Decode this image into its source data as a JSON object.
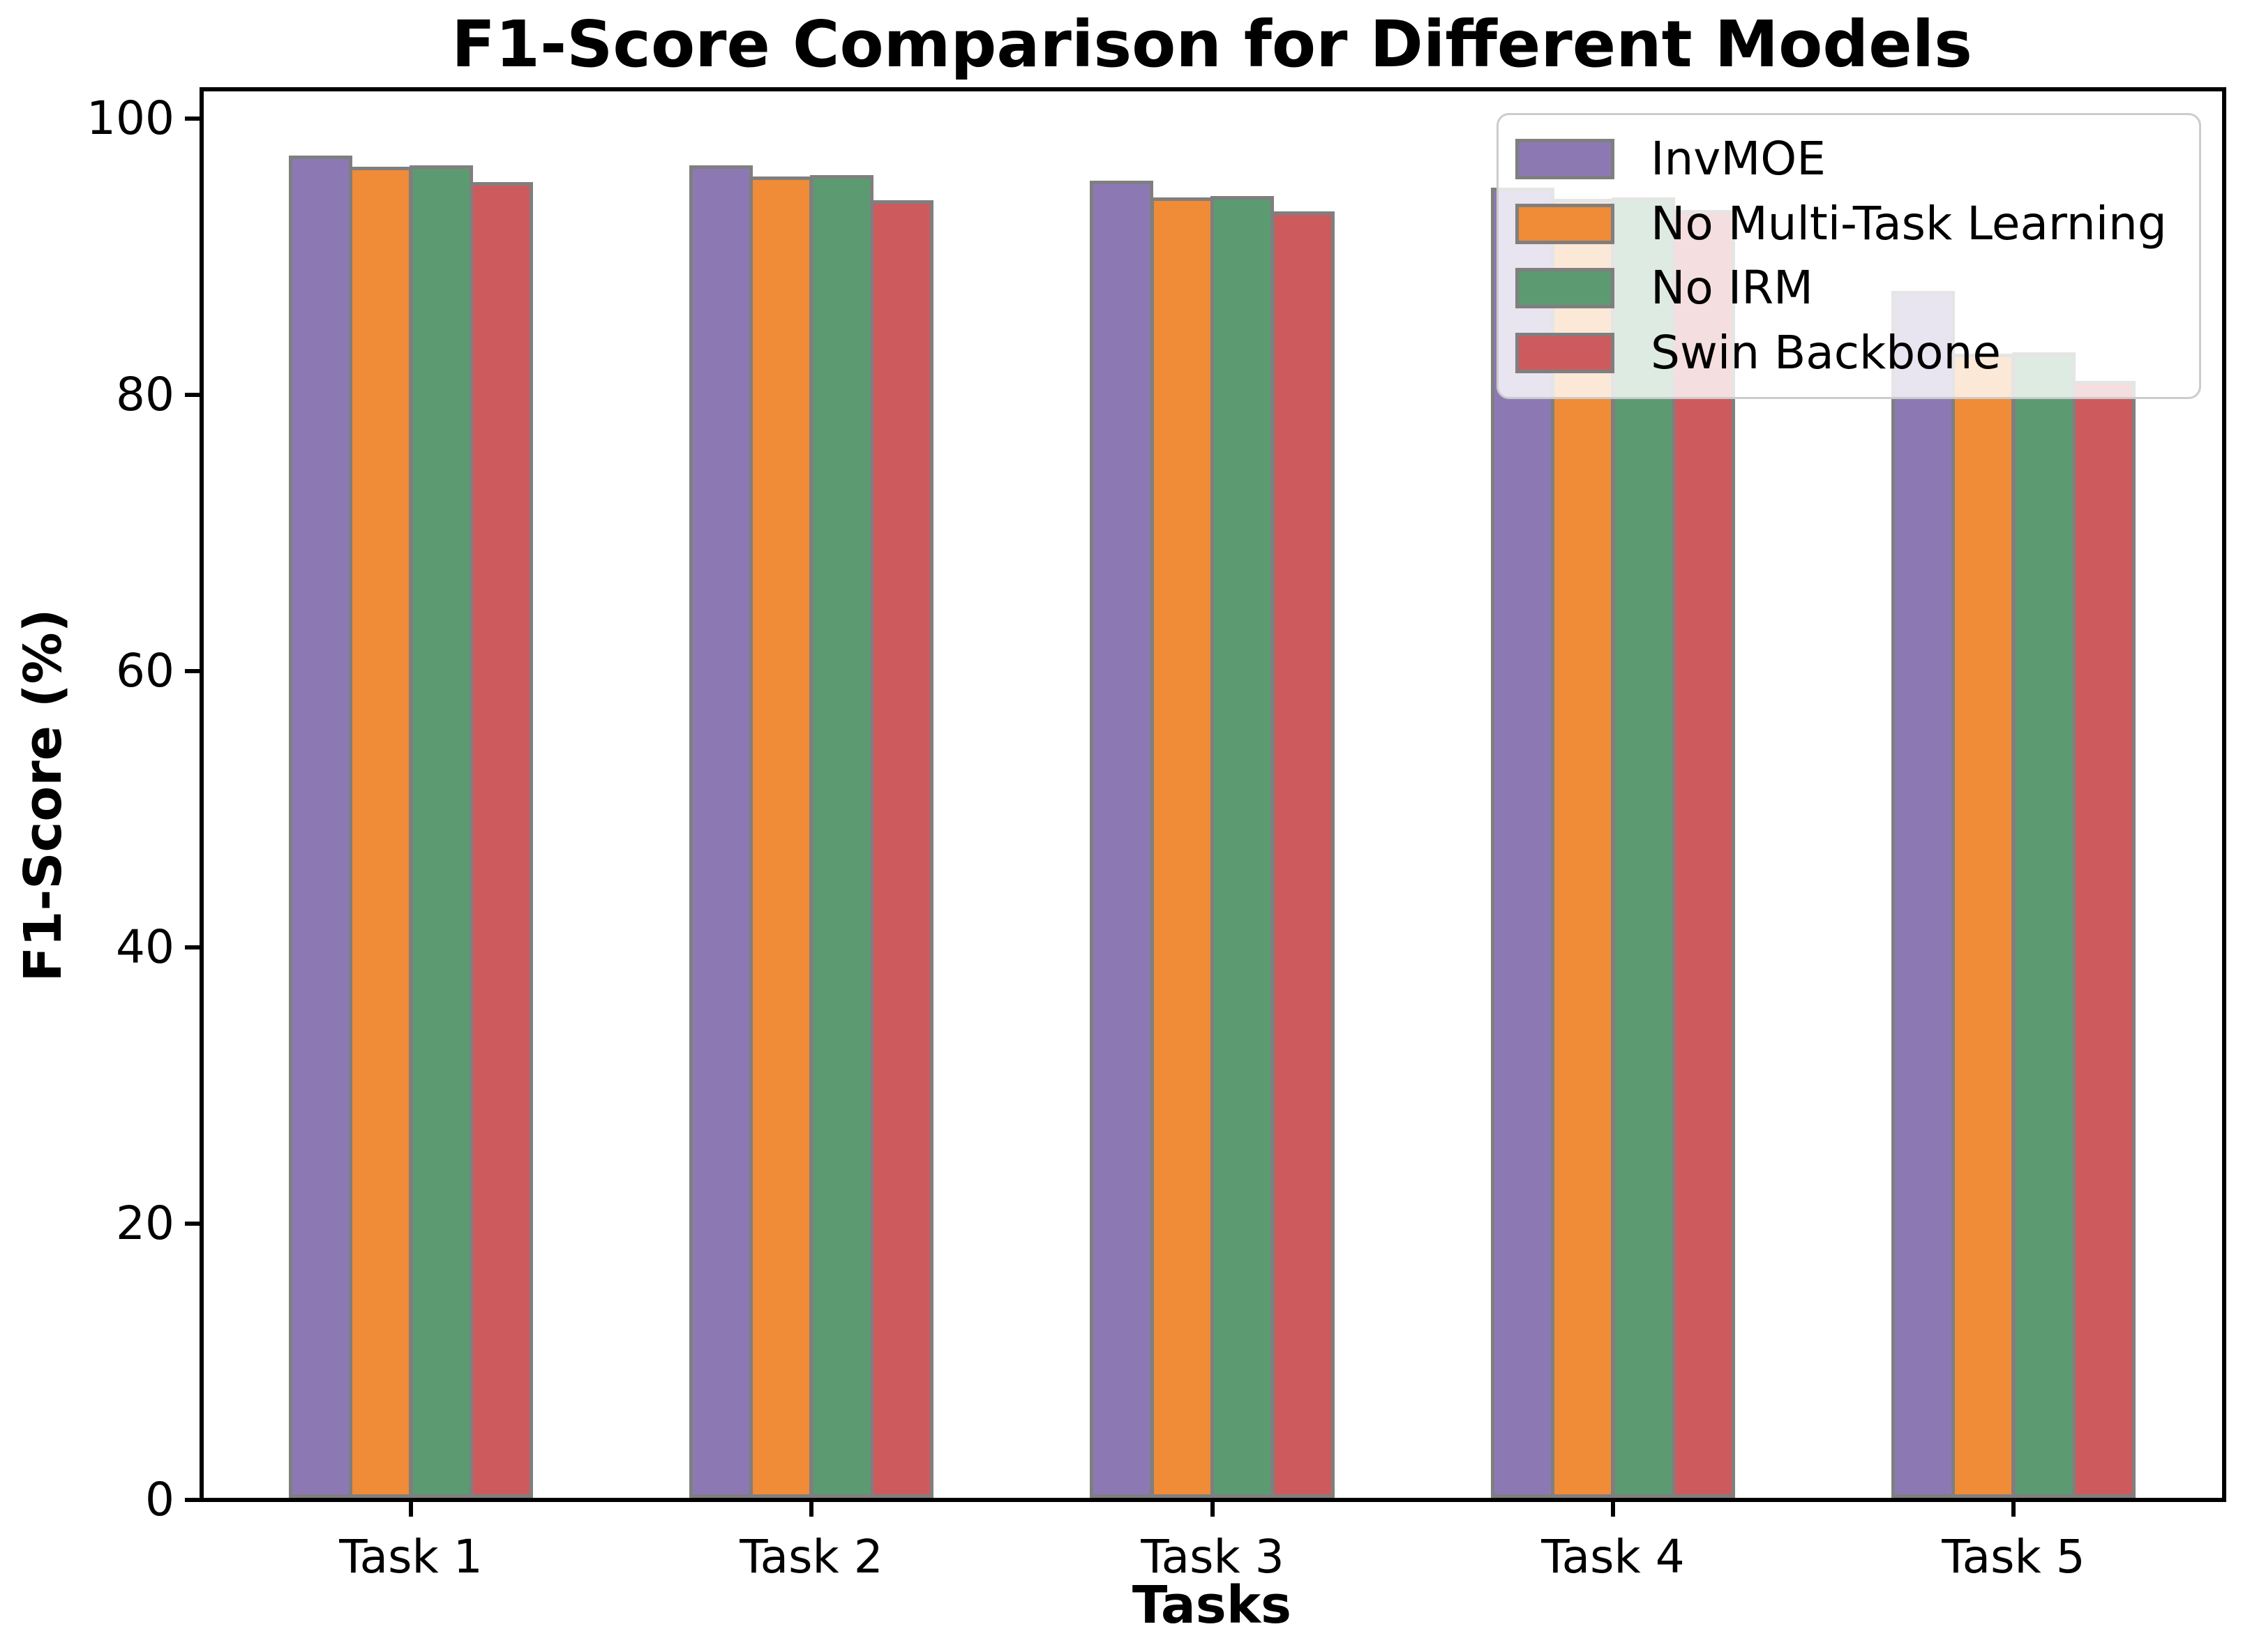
{
  "title": "F1-Score Comparison for Different Models",
  "chart_data": {
    "type": "bar",
    "title": "F1-Score Comparison for Different Models",
    "xlabel": "Tasks",
    "ylabel": "F1-Score (%)",
    "categories": [
      "Task 1",
      "Task 2",
      "Task 3",
      "Task 4",
      "Task 5"
    ],
    "series": [
      {
        "name": "InvMOE",
        "color": "#8C79B4",
        "values": [
          97.3,
          96.6,
          95.5,
          95.0,
          87.5
        ]
      },
      {
        "name": "No Multi-Task Learning",
        "color": "#F08B37",
        "values": [
          96.5,
          95.8,
          94.3,
          94.2,
          83.0
        ]
      },
      {
        "name": "No IRM",
        "color": "#5C9B71",
        "values": [
          96.6,
          95.9,
          94.4,
          94.3,
          83.1
        ]
      },
      {
        "name": "Swin Backbone",
        "color": "#CD5B5E",
        "values": [
          95.4,
          94.1,
          93.3,
          93.4,
          81.0
        ]
      }
    ],
    "ylim": [
      0,
      100
    ],
    "yticks": [
      0,
      20,
      40,
      60,
      80,
      100
    ],
    "bar_edge_color": "#7f7f7f",
    "legend_position": "upper right",
    "legend_border_color": "#cccccc",
    "grid": false
  }
}
